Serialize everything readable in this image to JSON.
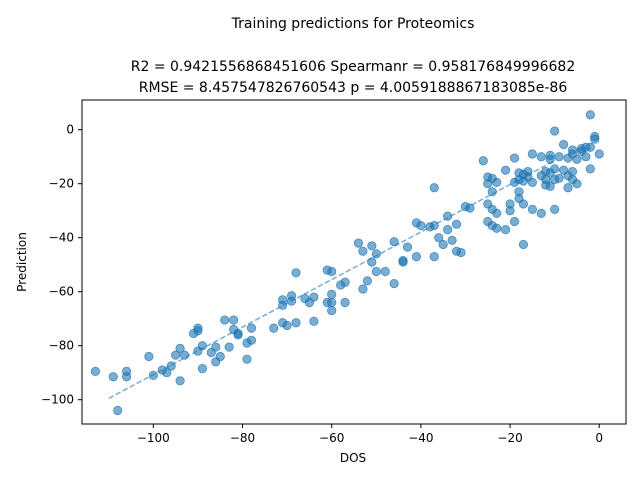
{
  "chart_data": {
    "type": "scatter",
    "suptitle": "Training predictions for Proteomics",
    "title_line1": "R2 = 0.9421556868451606 Spearmanr = 0.958176849996682",
    "title_line2": "RMSE = 8.457547826760543 p = 4.0059188867183085e-86",
    "xlabel": "DOS",
    "ylabel": "Prediction",
    "xlim": [
      -116,
      6
    ],
    "ylim": [
      -109,
      11
    ],
    "xticks": [
      -100,
      -80,
      -60,
      -40,
      -20,
      0
    ],
    "yticks": [
      -100,
      -80,
      -60,
      -40,
      -20,
      0
    ],
    "grid": false,
    "colors": {
      "points": "#1f77b4",
      "fit_line": "#1f77b4"
    },
    "fit_line": {
      "x": [
        -110,
        -10
      ],
      "y": [
        -99.5,
        -11.5
      ]
    },
    "points": [
      [
        -113,
        -89.5
      ],
      [
        -109,
        -91.5
      ],
      [
        -108,
        -104
      ],
      [
        -106,
        -89.5
      ],
      [
        -106,
        -91.5
      ],
      [
        -101,
        -84
      ],
      [
        -100,
        -91
      ],
      [
        -98,
        -89
      ],
      [
        -97,
        -90
      ],
      [
        -96,
        -87.5
      ],
      [
        -95,
        -83.5
      ],
      [
        -94,
        -81
      ],
      [
        -94,
        -93
      ],
      [
        -93,
        -83.5
      ],
      [
        -91,
        -75.5
      ],
      [
        -90,
        -73.5
      ],
      [
        -90,
        -74.5
      ],
      [
        -90,
        -82
      ],
      [
        -89,
        -80
      ],
      [
        -89,
        -88.5
      ],
      [
        -87,
        -82.5
      ],
      [
        -86,
        -80.5
      ],
      [
        -86,
        -86
      ],
      [
        -85,
        -84
      ],
      [
        -84,
        -70.5
      ],
      [
        -83,
        -80.5
      ],
      [
        -82,
        -70.5
      ],
      [
        -82,
        -74
      ],
      [
        -81,
        -75.5
      ],
      [
        -81,
        -76
      ],
      [
        -79,
        -79
      ],
      [
        -79,
        -85
      ],
      [
        -78,
        -73.5
      ],
      [
        -78,
        -78
      ],
      [
        -73,
        -73.5
      ],
      [
        -71,
        -63
      ],
      [
        -71,
        -65
      ],
      [
        -71,
        -71.5
      ],
      [
        -70,
        -72.5
      ],
      [
        -69,
        -61.5
      ],
      [
        -69,
        -63.5
      ],
      [
        -68,
        -53
      ],
      [
        -68,
        -71.5
      ],
      [
        -66,
        -62.5
      ],
      [
        -65,
        -64
      ],
      [
        -64,
        -62
      ],
      [
        -64,
        -71
      ],
      [
        -61,
        -52
      ],
      [
        -61,
        -64
      ],
      [
        -60,
        -52.5
      ],
      [
        -60,
        -61
      ],
      [
        -60,
        -64
      ],
      [
        -60,
        -67
      ],
      [
        -58,
        -57.5
      ],
      [
        -57,
        -56.5
      ],
      [
        -57,
        -64
      ],
      [
        -54,
        -42
      ],
      [
        -53,
        -45
      ],
      [
        -53,
        -59
      ],
      [
        -52,
        -56
      ],
      [
        -51,
        -43
      ],
      [
        -51,
        -49
      ],
      [
        -50,
        -46
      ],
      [
        -50,
        -52.5
      ],
      [
        -48,
        -52.5
      ],
      [
        -46,
        -41.5
      ],
      [
        -46,
        -57
      ],
      [
        -44,
        -48.5
      ],
      [
        -44,
        -49
      ],
      [
        -43,
        -43.5
      ],
      [
        -41,
        -34.5
      ],
      [
        -41,
        -47
      ],
      [
        -40,
        -35.5
      ],
      [
        -38,
        -36
      ],
      [
        -37,
        -21.5
      ],
      [
        -37,
        -35.5
      ],
      [
        -37,
        -47
      ],
      [
        -36,
        -40
      ],
      [
        -35,
        -42.5
      ],
      [
        -34,
        -32
      ],
      [
        -34,
        -37
      ],
      [
        -33,
        -41
      ],
      [
        -32,
        -35
      ],
      [
        -32,
        -45
      ],
      [
        -31,
        -45.5
      ],
      [
        -30,
        -28.5
      ],
      [
        -29,
        -29
      ],
      [
        -26,
        -11.5
      ],
      [
        -25,
        -17.5
      ],
      [
        -25,
        -20
      ],
      [
        -25,
        -27.5
      ],
      [
        -25,
        -34
      ],
      [
        -24,
        -18
      ],
      [
        -24,
        -23
      ],
      [
        -24,
        -29.5
      ],
      [
        -24,
        -35.5
      ],
      [
        -23,
        -19.5
      ],
      [
        -23,
        -31
      ],
      [
        -23,
        -36.5
      ],
      [
        -21,
        -15
      ],
      [
        -21,
        -37
      ],
      [
        -20,
        -27.5
      ],
      [
        -20,
        -30
      ],
      [
        -19,
        -10.5
      ],
      [
        -19,
        -19.5
      ],
      [
        -19,
        -34
      ],
      [
        -18,
        -16
      ],
      [
        -18,
        -18.5
      ],
      [
        -18,
        -23
      ],
      [
        -18,
        -25.5
      ],
      [
        -17,
        -16.5
      ],
      [
        -17,
        -19
      ],
      [
        -17,
        -27.5
      ],
      [
        -17,
        -42.5
      ],
      [
        -16,
        -15.5
      ],
      [
        -16,
        -17.5
      ],
      [
        -15,
        -9
      ],
      [
        -15,
        -19.5
      ],
      [
        -15,
        -29.5
      ],
      [
        -13,
        -10
      ],
      [
        -13,
        -17
      ],
      [
        -13,
        -31
      ],
      [
        -12,
        -15.5
      ],
      [
        -12,
        -18.5
      ],
      [
        -12,
        -20.5
      ],
      [
        -11,
        -9.5
      ],
      [
        -11,
        -11
      ],
      [
        -11,
        -16
      ],
      [
        -11,
        -21
      ],
      [
        -10,
        -0.5
      ],
      [
        -10,
        -14.5
      ],
      [
        -10,
        -18.5
      ],
      [
        -10,
        -29.5
      ],
      [
        -9,
        -10
      ],
      [
        -9,
        -18
      ],
      [
        -8,
        -5.5
      ],
      [
        -8,
        -15
      ],
      [
        -7,
        -10.5
      ],
      [
        -7,
        -17
      ],
      [
        -7,
        -21.5
      ],
      [
        -6,
        -7.5
      ],
      [
        -6,
        -9
      ],
      [
        -6,
        -15.5
      ],
      [
        -6,
        -18.5
      ],
      [
        -5,
        -11
      ],
      [
        -5,
        -20
      ],
      [
        -4,
        -7
      ],
      [
        -4,
        -8
      ],
      [
        -3,
        -6.5
      ],
      [
        -3,
        -10
      ],
      [
        -2,
        -6.5
      ],
      [
        -2,
        -14.5
      ],
      [
        -2,
        5.5
      ],
      [
        -1,
        -2.5
      ],
      [
        -1,
        -3.5
      ],
      [
        0,
        -9
      ]
    ]
  }
}
